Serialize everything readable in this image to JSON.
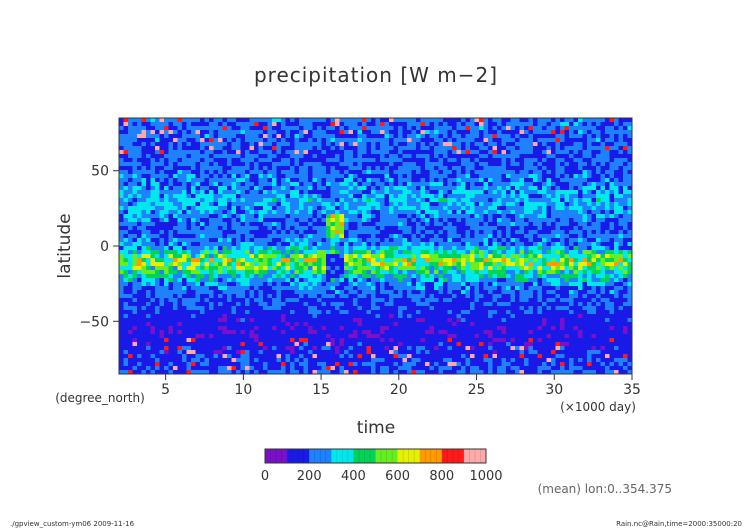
{
  "chart_data": {
    "type": "heatmap",
    "title": "precipitation [W m−2]",
    "xlabel": "time",
    "x_unit": "(×1000 day)",
    "ylabel": "latitude",
    "y_unit": "(degree_north)",
    "xlim": [
      2.0,
      35.0
    ],
    "ylim": [
      -85.0,
      85.0
    ],
    "x_ticks": [
      5,
      10,
      15,
      20,
      25,
      30,
      35
    ],
    "y_ticks": [
      50,
      0,
      -50
    ],
    "y_tick_labels": [
      "50",
      "0",
      "−50"
    ],
    "colorbar": {
      "min": 0,
      "max": 1000,
      "step": 100,
      "tick_values": [
        0,
        200,
        400,
        600,
        800,
        1000
      ],
      "colors": [
        "#7a10c8",
        "#1a1ae8",
        "#1e82ff",
        "#00e8ee",
        "#00d25a",
        "#66ee22",
        "#e6f000",
        "#ff9a00",
        "#ff1a1a",
        "#ffaaaa"
      ]
    },
    "field_profile": {
      "lat": [
        -85,
        -70,
        -55,
        -45,
        -35,
        -25,
        -18,
        -14,
        -11,
        -8,
        -5,
        0,
        10,
        20,
        30,
        40,
        55,
        70,
        85
      ],
      "mean": [
        200,
        155,
        130,
        160,
        195,
        255,
        380,
        500,
        570,
        540,
        420,
        260,
        200,
        245,
        300,
        250,
        200,
        215,
        225
      ]
    },
    "feature": {
      "time_range": [
        15.2,
        16.6
      ],
      "note": "precipitation band shifts to ~15N"
    }
  },
  "annotation": "(mean) lon:0..354.375",
  "footer": {
    "left": "./gpview_custom-ym06   2009-11-16",
    "right": "Rain.nc@Rain,time=2000:35000:20"
  }
}
